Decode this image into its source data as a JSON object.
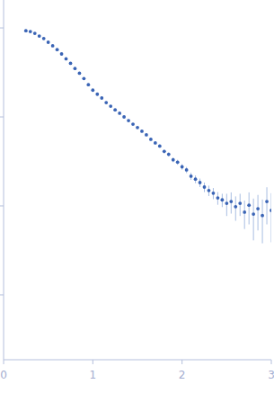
{
  "chart_data": {
    "type": "scatter",
    "log": "y",
    "tick_labels": "x",
    "marker": "circle",
    "color": "#3a64b5",
    "xlim": [
      0,
      3
    ],
    "ylim": [
      0.000187,
      2.06
    ],
    "xticks": [
      0,
      1,
      2,
      3
    ],
    "yticks": [
      0.001,
      0.01,
      0.1,
      1
    ],
    "x": [
      0.25,
      0.3,
      0.35,
      0.4,
      0.45,
      0.5,
      0.55,
      0.6,
      0.65,
      0.7,
      0.75,
      0.8,
      0.85,
      0.9,
      0.95,
      1.0,
      1.05,
      1.1,
      1.15,
      1.2,
      1.25,
      1.3,
      1.35,
      1.4,
      1.45,
      1.5,
      1.55,
      1.6,
      1.65,
      1.7,
      1.75,
      1.8,
      1.85,
      1.9,
      1.95,
      2.0,
      2.05,
      2.1,
      2.15,
      2.2,
      2.25,
      2.3,
      2.35,
      2.4,
      2.45,
      2.5,
      2.55,
      2.6,
      2.65,
      2.7,
      2.75,
      2.8,
      2.85,
      2.9,
      2.95,
      3.0
    ],
    "values": [
      0.93,
      0.91,
      0.87,
      0.81,
      0.76,
      0.69,
      0.63,
      0.57,
      0.51,
      0.45,
      0.4,
      0.35,
      0.31,
      0.27,
      0.23,
      0.2,
      0.18,
      0.163,
      0.145,
      0.132,
      0.12,
      0.11,
      0.1,
      0.091,
      0.083,
      0.076,
      0.069,
      0.063,
      0.056,
      0.051,
      0.047,
      0.041,
      0.038,
      0.033,
      0.031,
      0.0275,
      0.0254,
      0.0216,
      0.02,
      0.0183,
      0.0163,
      0.0149,
      0.0139,
      0.0123,
      0.0117,
      0.0107,
      0.0112,
      0.0098,
      0.0107,
      0.0085,
      0.0102,
      0.0081,
      0.0093,
      0.0078,
      0.0112,
      0.0089
    ],
    "errors": [
      0.005,
      0.005,
      0.005,
      0.004,
      0.004,
      0.004,
      0.003,
      0.003,
      0.003,
      0.003,
      0.003,
      0.003,
      0.002,
      0.002,
      0.002,
      0.002,
      0.002,
      0.002,
      0.002,
      0.002,
      0.002,
      0.002,
      0.002,
      0.002,
      0.002,
      0.002,
      0.002,
      0.002,
      0.002,
      0.002,
      0.002,
      0.002,
      0.002,
      0.002,
      0.002,
      0.002,
      0.002,
      0.002,
      0.002,
      0.002,
      0.002,
      0.002,
      0.002,
      0.002,
      0.002,
      0.003,
      0.003,
      0.003,
      0.003,
      0.003,
      0.004,
      0.004,
      0.004,
      0.004,
      0.005,
      0.005
    ]
  }
}
